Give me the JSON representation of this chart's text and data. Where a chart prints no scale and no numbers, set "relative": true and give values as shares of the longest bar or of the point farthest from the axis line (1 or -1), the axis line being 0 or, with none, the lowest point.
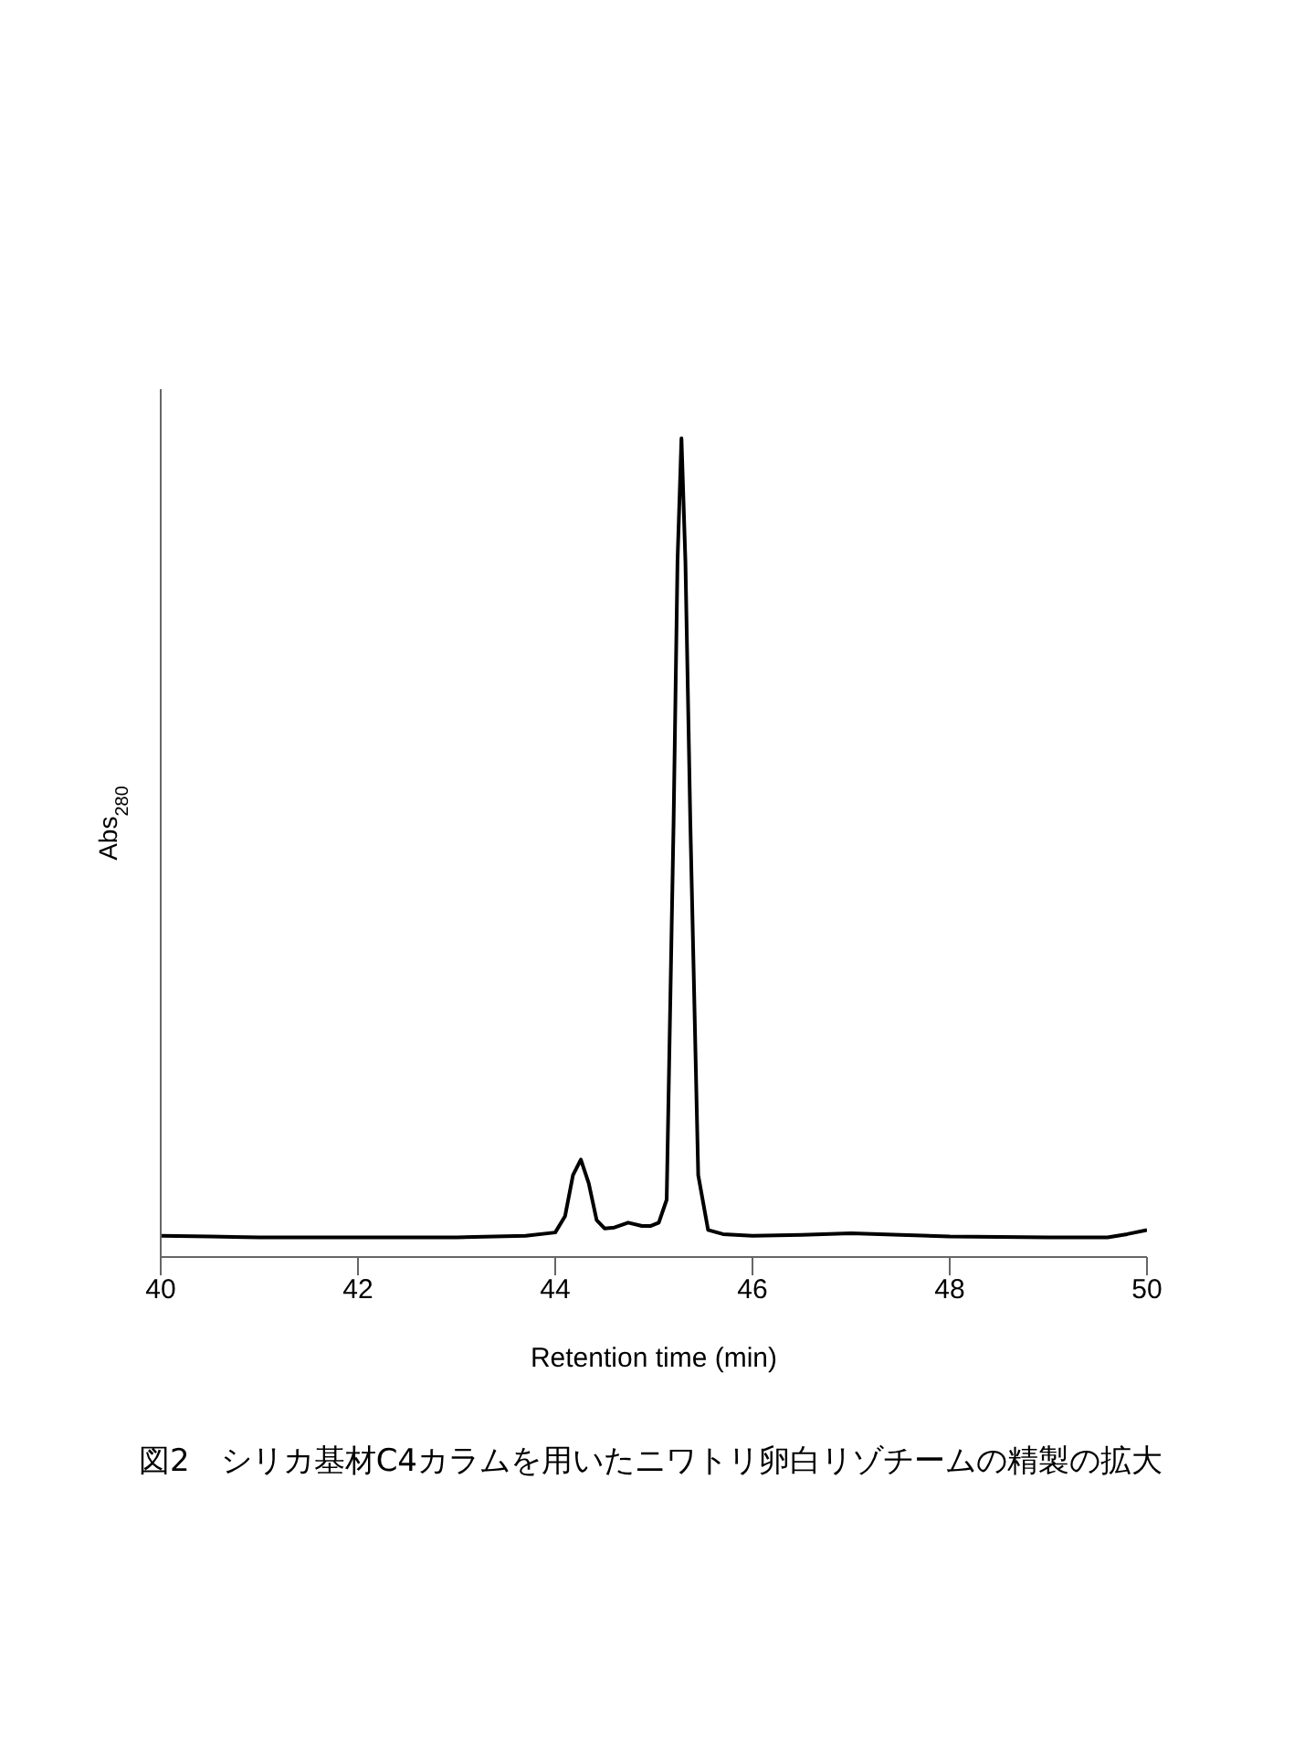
{
  "chart_data": {
    "type": "line",
    "relative": true,
    "xlabel": "Retention time (min)",
    "ylabel": "Abs$_{280}$",
    "annotations": [
      "図2　シリカ基材C4カラムを用いたニワトリ卵白リゾチームの精製の拡大"
    ],
    "xlim": [
      40,
      50
    ],
    "xticks": [
      40,
      42,
      44,
      46,
      48,
      50
    ],
    "marker": "none",
    "line_style": "solid",
    "series": [
      {
        "color": "#000000",
        "x": [
          40,
          40.5,
          41,
          42,
          43,
          43.7,
          44.0,
          44.1,
          44.18,
          44.26,
          44.34,
          44.42,
          44.5,
          44.6,
          44.74,
          44.88,
          44.97,
          45.05,
          45.13,
          45.2,
          45.24,
          45.28,
          45.32,
          45.37,
          45.45,
          45.55,
          45.7,
          46,
          46.5,
          47,
          47.5,
          48,
          49,
          49.6,
          49.8,
          50
        ],
        "values": [
          0.026,
          0.025,
          0.024,
          0.024,
          0.024,
          0.026,
          0.03,
          0.05,
          0.1,
          0.119,
          0.09,
          0.045,
          0.035,
          0.036,
          0.042,
          0.038,
          0.038,
          0.042,
          0.07,
          0.53,
          0.85,
          1,
          0.85,
          0.53,
          0.1,
          0.033,
          0.028,
          0.026,
          0.027,
          0.029,
          0.027,
          0.025,
          0.024,
          0.024,
          0.028,
          0.033
        ]
      }
    ]
  }
}
